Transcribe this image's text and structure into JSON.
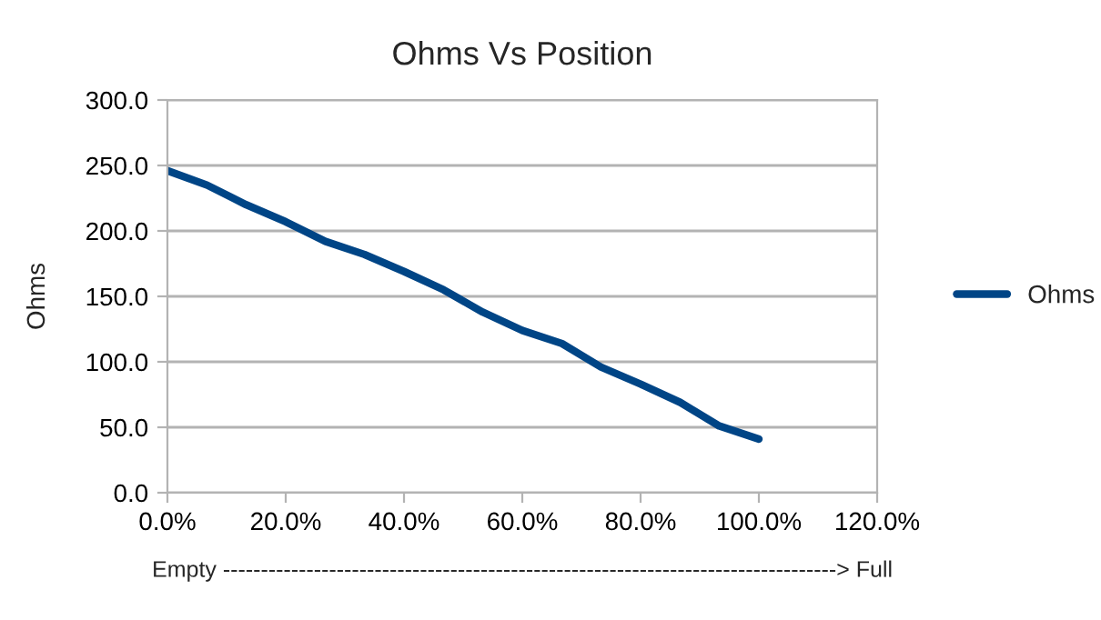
{
  "chart_data": {
    "type": "line",
    "title": "Ohms Vs Position",
    "xlabel": "Empty ---------------------------------------------------------------------------------> Full",
    "ylabel": "Ohms",
    "x": [
      0,
      6.7,
      13.3,
      20,
      26.7,
      33.3,
      40,
      46.7,
      53.3,
      60,
      66.7,
      73.3,
      80,
      86.7,
      93.3,
      100
    ],
    "series": [
      {
        "name": "Ohms",
        "color": "#004586",
        "values": [
          246,
          235,
          220,
          207,
          192,
          182,
          169,
          155,
          138,
          124,
          114,
          96,
          83,
          69,
          51,
          41
        ]
      }
    ],
    "xlim": [
      0,
      120
    ],
    "xticks": [
      {
        "value": 0,
        "label": "0.0%"
      },
      {
        "value": 20,
        "label": "20.0%"
      },
      {
        "value": 40,
        "label": "40.0%"
      },
      {
        "value": 60,
        "label": "60.0%"
      },
      {
        "value": 80,
        "label": "80.0%"
      },
      {
        "value": 100,
        "label": "100.0%"
      },
      {
        "value": 120,
        "label": "120.0%"
      }
    ],
    "ylim": [
      0,
      300
    ],
    "yticks": [
      {
        "value": 0,
        "label": "0.0"
      },
      {
        "value": 50,
        "label": "50.0"
      },
      {
        "value": 100,
        "label": "100.0"
      },
      {
        "value": 150,
        "label": "150.0"
      },
      {
        "value": 200,
        "label": "200.0"
      },
      {
        "value": 250,
        "label": "250.0"
      },
      {
        "value": 300,
        "label": "300.0"
      }
    ],
    "grid": "y",
    "legend": "right",
    "marker": "none",
    "line_style": "solid"
  }
}
